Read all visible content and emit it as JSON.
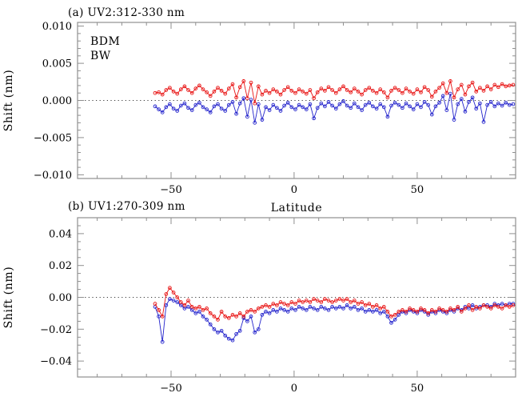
{
  "figure": {
    "background": "#ffffff",
    "axis_color": "#8f8f8f",
    "zero_line_color": "#3a3a3a"
  },
  "chart_data": [
    {
      "type": "line",
      "title": "(a) UV2:312-330 nm",
      "xlabel": "Latitude",
      "ylabel": "Shift (nm)",
      "xlim": [
        -88,
        90
      ],
      "ylim": [
        -0.0105,
        0.0105
      ],
      "grid": false,
      "zero_line": true,
      "legend_position": "top-left-inside",
      "xticks": {
        "values": [
          -50,
          0,
          50
        ],
        "labels": [
          "−50",
          "0",
          "50"
        ],
        "minor_step": 10
      },
      "yticks": {
        "values": [
          0.01,
          0.005,
          0.0,
          -0.005,
          -0.01
        ],
        "labels": [
          "0.010",
          "0.005",
          "0.000",
          "−0.005",
          "−0.010"
        ],
        "minor_step": 0.001
      },
      "legend": [
        {
          "name": "BDM",
          "color": "#2323cc"
        },
        {
          "name": "BW",
          "color": "#e81212"
        }
      ],
      "x": [
        -56.5,
        -55,
        -53.5,
        -52,
        -50.5,
        -49,
        -47.5,
        -46,
        -44.5,
        -43,
        -41.5,
        -40,
        -38.5,
        -37,
        -35.5,
        -34,
        -32.5,
        -31,
        -29.5,
        -28,
        -26.5,
        -25,
        -23.5,
        -22,
        -20.5,
        -19,
        -17.5,
        -16,
        -14.5,
        -13,
        -11.5,
        -10,
        -8.5,
        -7,
        -5.5,
        -4,
        -2.5,
        -1,
        0.5,
        2,
        3.5,
        5,
        6.5,
        8,
        9.5,
        11,
        12.5,
        14,
        15.5,
        17,
        18.5,
        20,
        21.5,
        23,
        24.5,
        26,
        27.5,
        29,
        30.5,
        32,
        33.5,
        35,
        36.5,
        38,
        39.5,
        41,
        42.5,
        44,
        45.5,
        47,
        48.5,
        50,
        51.5,
        53,
        54.5,
        56,
        57.5,
        59,
        60.5,
        62,
        63.5,
        65,
        66.5,
        68,
        69.5,
        71,
        72.5,
        74,
        75.5,
        77,
        78.5,
        80,
        81.5,
        83,
        84.5,
        86,
        87.5,
        89
      ],
      "series": [
        {
          "name": "BDM",
          "color": "#2323cc",
          "values": [
            -0.0008,
            -0.0012,
            -0.0016,
            -0.0009,
            -0.0005,
            -0.0011,
            -0.0014,
            -0.0007,
            -0.0004,
            -0.001,
            -0.0013,
            -0.0006,
            -0.0003,
            -0.0009,
            -0.0012,
            -0.0016,
            -0.0008,
            -0.0005,
            -0.0011,
            -0.0014,
            -0.0006,
            -0.0002,
            -0.0018,
            -0.0004,
            0.0003,
            -0.0022,
            0.0001,
            -0.003,
            -0.0005,
            -0.0026,
            -0.0009,
            -0.0013,
            -0.0006,
            -0.001,
            -0.0014,
            -0.0007,
            -0.0003,
            -0.0009,
            -0.0012,
            -0.0006,
            -0.0009,
            -0.0012,
            -0.0005,
            -0.0024,
            -0.001,
            -0.0004,
            -0.0008,
            -0.0002,
            -0.0007,
            -0.0011,
            -0.0005,
            -0.0001,
            -0.0007,
            -0.001,
            -0.0004,
            -0.0009,
            -0.0013,
            -0.0006,
            -0.0003,
            -0.0008,
            -0.0011,
            -0.0005,
            -0.0009,
            -0.0022,
            -0.0007,
            -0.0003,
            -0.0006,
            -0.001,
            -0.0004,
            -0.0008,
            -0.0012,
            -0.0005,
            -0.0009,
            -0.0002,
            -0.0006,
            -0.0019,
            -0.0008,
            -0.0003,
            0.0006,
            -0.0013,
            0.0009,
            -0.0026,
            -0.0005,
            0.0002,
            -0.0015,
            -0.0002,
            0.0004,
            -0.0011,
            -0.0004,
            -0.0029,
            -0.0006,
            -0.0002,
            -0.0008,
            -0.0004,
            -0.0007,
            -0.0003,
            -0.0006,
            -0.0005
          ]
        },
        {
          "name": "BW",
          "color": "#e81212",
          "values": [
            0.001,
            0.0011,
            0.0008,
            0.0014,
            0.0017,
            0.0012,
            0.0009,
            0.0015,
            0.0019,
            0.0014,
            0.001,
            0.0016,
            0.002,
            0.0015,
            0.0011,
            0.0006,
            0.0012,
            0.0017,
            0.0013,
            0.0009,
            0.0016,
            0.0022,
            0.0004,
            0.0018,
            0.0026,
            0.0003,
            0.0024,
            -0.0004,
            0.0019,
            0.0008,
            0.0013,
            0.001,
            0.0015,
            0.0012,
            0.0008,
            0.0014,
            0.0018,
            0.0013,
            0.001,
            0.0015,
            0.0012,
            0.0009,
            0.0014,
            0.0003,
            0.0011,
            0.0016,
            0.0013,
            0.0018,
            0.0014,
            0.001,
            0.0015,
            0.0019,
            0.0014,
            0.0011,
            0.0016,
            0.0012,
            0.0008,
            0.0014,
            0.0017,
            0.0013,
            0.001,
            0.0015,
            0.0011,
            0.0004,
            0.0013,
            0.0017,
            0.0014,
            0.001,
            0.0016,
            0.0012,
            0.0009,
            0.0015,
            0.0011,
            0.0018,
            0.0014,
            0.0005,
            0.0012,
            0.0017,
            0.0023,
            0.001,
            0.0026,
            0.0004,
            0.0015,
            0.0021,
            0.0008,
            0.0019,
            0.0024,
            0.0012,
            0.0017,
            0.0013,
            0.0019,
            0.0015,
            0.0021,
            0.0018,
            0.0022,
            0.0019,
            0.002,
            0.0021
          ]
        }
      ]
    },
    {
      "type": "line",
      "title": "(b) UV1:270-309 nm",
      "xlabel": "",
      "ylabel": "Shift (nm)",
      "xlim": [
        -88,
        90
      ],
      "ylim": [
        -0.05,
        0.05
      ],
      "grid": false,
      "zero_line": true,
      "xticks": {
        "values": [
          -50,
          0,
          50
        ],
        "labels": [
          "−50",
          "0",
          "50"
        ],
        "minor_step": 10
      },
      "yticks": {
        "values": [
          0.04,
          0.02,
          0.0,
          -0.02,
          -0.04
        ],
        "labels": [
          "0.04",
          "0.02",
          "0.00",
          "−0.02",
          "−0.04"
        ],
        "minor_step": 0.005
      },
      "x": [
        -56.5,
        -55,
        -53.5,
        -52,
        -50.5,
        -49,
        -47.5,
        -46,
        -44.5,
        -43,
        -41.5,
        -40,
        -38.5,
        -37,
        -35.5,
        -34,
        -32.5,
        -31,
        -29.5,
        -28,
        -26.5,
        -25,
        -23.5,
        -22,
        -20.5,
        -19,
        -17.5,
        -16,
        -14.5,
        -13,
        -11.5,
        -10,
        -8.5,
        -7,
        -5.5,
        -4,
        -2.5,
        -1,
        0.5,
        2,
        3.5,
        5,
        6.5,
        8,
        9.5,
        11,
        12.5,
        14,
        15.5,
        17,
        18.5,
        20,
        21.5,
        23,
        24.5,
        26,
        27.5,
        29,
        30.5,
        32,
        33.5,
        35,
        36.5,
        38,
        39.5,
        41,
        42.5,
        44,
        45.5,
        47,
        48.5,
        50,
        51.5,
        53,
        54.5,
        56,
        57.5,
        59,
        60.5,
        62,
        63.5,
        65,
        66.5,
        68,
        69.5,
        71,
        72.5,
        74,
        75.5,
        77,
        78.5,
        80,
        81.5,
        83,
        84.5,
        86,
        87.5,
        89
      ],
      "series": [
        {
          "name": "BDM",
          "color": "#2323cc",
          "values": [
            -0.006,
            -0.012,
            -0.028,
            -0.005,
            -0.001,
            -0.002,
            -0.003,
            -0.005,
            -0.007,
            -0.006,
            -0.008,
            -0.01,
            -0.009,
            -0.012,
            -0.014,
            -0.017,
            -0.02,
            -0.022,
            -0.021,
            -0.024,
            -0.026,
            -0.027,
            -0.023,
            -0.021,
            -0.013,
            -0.015,
            -0.012,
            -0.022,
            -0.02,
            -0.011,
            -0.009,
            -0.01,
            -0.008,
            -0.009,
            -0.007,
            -0.008,
            -0.009,
            -0.007,
            -0.008,
            -0.006,
            -0.007,
            -0.008,
            -0.006,
            -0.007,
            -0.008,
            -0.006,
            -0.007,
            -0.008,
            -0.006,
            -0.007,
            -0.006,
            -0.007,
            -0.005,
            -0.007,
            -0.006,
            -0.008,
            -0.007,
            -0.009,
            -0.008,
            -0.009,
            -0.008,
            -0.01,
            -0.009,
            -0.012,
            -0.016,
            -0.014,
            -0.011,
            -0.009,
            -0.01,
            -0.008,
            -0.009,
            -0.01,
            -0.008,
            -0.009,
            -0.011,
            -0.009,
            -0.01,
            -0.008,
            -0.009,
            -0.01,
            -0.008,
            -0.009,
            -0.007,
            -0.008,
            -0.006,
            -0.007,
            -0.005,
            -0.007,
            -0.006,
            -0.005,
            -0.005,
            -0.006,
            -0.004,
            -0.005,
            -0.004,
            -0.005,
            -0.004,
            -0.004
          ]
        },
        {
          "name": "BW",
          "color": "#e81212",
          "values": [
            -0.004,
            -0.008,
            -0.012,
            0.002,
            0.006,
            0.003,
            0.0,
            -0.003,
            -0.005,
            -0.002,
            -0.006,
            -0.007,
            -0.006,
            -0.008,
            -0.007,
            -0.01,
            -0.012,
            -0.014,
            -0.009,
            -0.012,
            -0.013,
            -0.011,
            -0.012,
            -0.01,
            -0.012,
            -0.009,
            -0.008,
            -0.009,
            -0.007,
            -0.006,
            -0.005,
            -0.006,
            -0.004,
            -0.005,
            -0.003,
            -0.004,
            -0.005,
            -0.003,
            -0.004,
            -0.002,
            -0.003,
            -0.002,
            -0.003,
            -0.001,
            -0.002,
            -0.003,
            -0.001,
            -0.002,
            -0.003,
            -0.002,
            -0.001,
            -0.002,
            -0.001,
            -0.003,
            -0.002,
            -0.004,
            -0.003,
            -0.005,
            -0.004,
            -0.006,
            -0.005,
            -0.007,
            -0.006,
            -0.009,
            -0.012,
            -0.011,
            -0.009,
            -0.008,
            -0.009,
            -0.007,
            -0.008,
            -0.009,
            -0.007,
            -0.008,
            -0.01,
            -0.008,
            -0.009,
            -0.007,
            -0.008,
            -0.009,
            -0.007,
            -0.008,
            -0.006,
            -0.009,
            -0.007,
            -0.005,
            -0.008,
            -0.006,
            -0.007,
            -0.005,
            -0.006,
            -0.007,
            -0.005,
            -0.006,
            -0.007,
            -0.005,
            -0.006,
            -0.005
          ]
        }
      ]
    }
  ]
}
